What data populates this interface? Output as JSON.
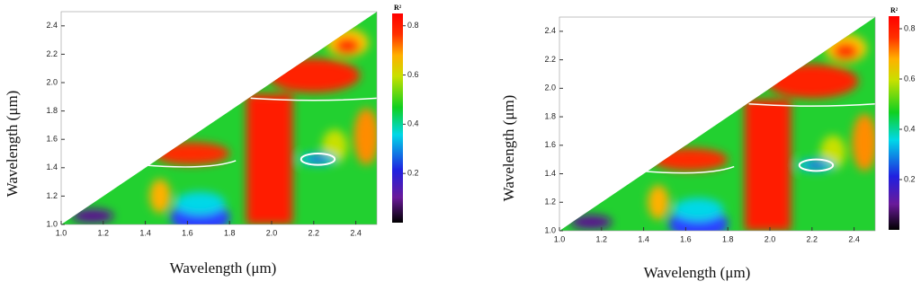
{
  "chart_data": [
    {
      "type": "heatmap",
      "xlabel": "Wavelength (μm)",
      "ylabel": "Wavelength (μm)",
      "colorbar_title": "R²",
      "xlim": [
        1.0,
        2.5
      ],
      "ylim": [
        1.0,
        2.5
      ],
      "xticks": [
        {
          "value": 1.0,
          "label": "1.0"
        },
        1.2,
        1.4,
        1.6,
        1.8,
        {
          "value": 2.0,
          "label": "2.0"
        },
        2.2,
        2.4
      ],
      "yticks": [
        {
          "value": 1.0,
          "label": "1.0"
        },
        1.2,
        1.4,
        1.6,
        1.8,
        {
          "value": 2.0,
          "label": "2.0"
        },
        2.2,
        2.4
      ],
      "clim": [
        0,
        0.85
      ],
      "cticks": [
        0.2,
        0.4,
        0.6,
        0.8
      ]
    },
    {
      "type": "heatmap",
      "xlabel": "Wavelength (μm)",
      "ylabel": "Wavelength (μm)",
      "colorbar_title": "R²",
      "xlim": [
        1.0,
        2.5
      ],
      "ylim": [
        1.0,
        2.5
      ],
      "xticks": [
        {
          "value": 1.0,
          "label": "1.0"
        },
        1.2,
        1.4,
        1.6,
        1.8,
        {
          "value": 2.0,
          "label": "2.0"
        },
        2.2,
        2.4
      ],
      "yticks": [
        {
          "value": 1.0,
          "label": "1.0"
        },
        1.2,
        1.4,
        1.6,
        1.8,
        {
          "value": 2.0,
          "label": "2.0"
        },
        2.2,
        2.4
      ],
      "clim": [
        0,
        0.85
      ],
      "cticks": [
        0.2,
        0.4,
        0.6,
        0.8
      ]
    }
  ]
}
